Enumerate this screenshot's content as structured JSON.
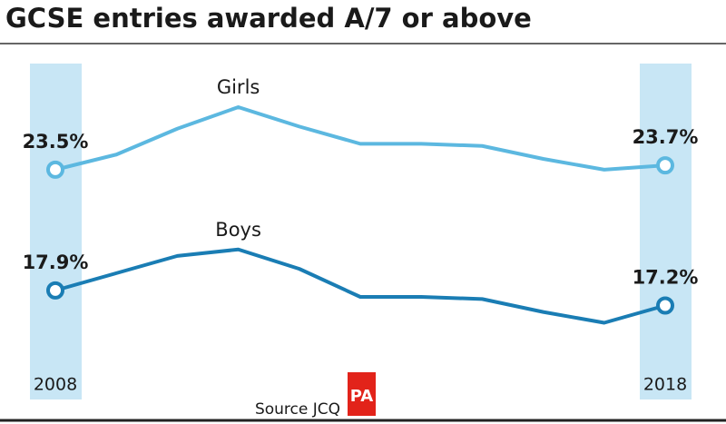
{
  "chart_data": {
    "type": "line",
    "title": "GCSE entries awarded A/7 or above",
    "x": [
      2008,
      2009,
      2010,
      2011,
      2012,
      2013,
      2014,
      2015,
      2016,
      2017,
      2018
    ],
    "xlim": [
      2008,
      2018
    ],
    "xticks": [
      2008,
      2018
    ],
    "ylim": [
      14,
      28
    ],
    "series": [
      {
        "name": "Girls",
        "color": "#5cb8e0",
        "values": [
          23.5,
          24.2,
          25.4,
          26.4,
          25.5,
          24.7,
          24.7,
          24.6,
          24.0,
          23.5,
          23.7
        ],
        "value_labels": [
          "23.5%",
          null,
          null,
          null,
          null,
          null,
          null,
          null,
          null,
          null,
          "23.7%"
        ]
      },
      {
        "name": "Boys",
        "color": "#1a7db4",
        "values": [
          17.9,
          18.7,
          19.5,
          19.8,
          18.9,
          17.6,
          17.6,
          17.5,
          16.9,
          16.4,
          17.2
        ],
        "value_labels": [
          "17.9%",
          null,
          null,
          null,
          null,
          null,
          null,
          null,
          null,
          null,
          "17.2%"
        ]
      }
    ],
    "band_color": "#c8e6f5",
    "source": "Source JCQ",
    "logo": "PA"
  }
}
